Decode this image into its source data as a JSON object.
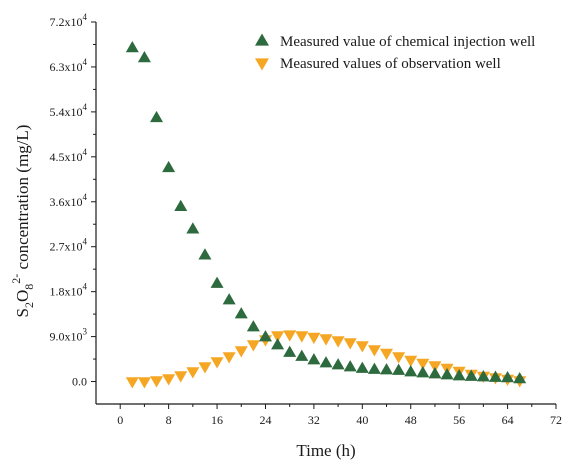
{
  "chart_data": {
    "type": "scatter",
    "xlabel": "Time (h)",
    "ylabel": {
      "parts": [
        {
          "text": "S",
          "shift": "none"
        },
        {
          "text": "2",
          "shift": "sub"
        },
        {
          "text": "O",
          "shift": "none"
        },
        {
          "text": "8",
          "shift": "sub"
        },
        {
          "text": "2-",
          "shift": "super"
        },
        {
          "text": " concentration (mg/L)",
          "shift": "none"
        }
      ]
    },
    "xlim": [
      -4,
      72
    ],
    "ylim": [
      -4500,
      72000
    ],
    "x_ticks": [
      0,
      8,
      16,
      24,
      32,
      40,
      48,
      56,
      64,
      72
    ],
    "y_ticks": [
      {
        "value": 0,
        "mantissa": "0.0",
        "exponent": ""
      },
      {
        "value": 9000,
        "mantissa": "9.0x10",
        "exponent": "3"
      },
      {
        "value": 18000,
        "mantissa": "1.8x10",
        "exponent": "4"
      },
      {
        "value": 27000,
        "mantissa": "2.7x10",
        "exponent": "4"
      },
      {
        "value": 36000,
        "mantissa": "3.6x10",
        "exponent": "4"
      },
      {
        "value": 45000,
        "mantissa": "4.5x10",
        "exponent": "4"
      },
      {
        "value": 54000,
        "mantissa": "5.4x10",
        "exponent": "4"
      },
      {
        "value": 63000,
        "mantissa": "6.3x10",
        "exponent": "4"
      },
      {
        "value": 72000,
        "mantissa": "7.2x10",
        "exponent": "4"
      }
    ],
    "legend_position": "top-right",
    "series": [
      {
        "name": "Measured value of chemical injection well",
        "marker": "triangle-up",
        "color": "#2d6a3e",
        "points": [
          [
            2,
            66800
          ],
          [
            4,
            64800
          ],
          [
            6,
            52800
          ],
          [
            8,
            42800
          ],
          [
            10,
            35000
          ],
          [
            12,
            30500
          ],
          [
            14,
            25300
          ],
          [
            16,
            19600
          ],
          [
            18,
            16300
          ],
          [
            20,
            13500
          ],
          [
            22,
            10900
          ],
          [
            24,
            8900
          ],
          [
            26,
            7300
          ],
          [
            28,
            5800
          ],
          [
            30,
            5000
          ],
          [
            32,
            4300
          ],
          [
            34,
            3700
          ],
          [
            36,
            3300
          ],
          [
            38,
            2900
          ],
          [
            40,
            2600
          ],
          [
            42,
            2400
          ],
          [
            44,
            2300
          ],
          [
            46,
            2200
          ],
          [
            48,
            1900
          ],
          [
            50,
            1700
          ],
          [
            52,
            1500
          ],
          [
            54,
            1300
          ],
          [
            56,
            1100
          ],
          [
            58,
            1000
          ],
          [
            60,
            900
          ],
          [
            62,
            800
          ],
          [
            64,
            700
          ],
          [
            66,
            500
          ]
        ]
      },
      {
        "name": "Measured values of observation well",
        "marker": "triangle-down",
        "color": "#f5a623",
        "points": [
          [
            2,
            0
          ],
          [
            4,
            0
          ],
          [
            6,
            200
          ],
          [
            8,
            600
          ],
          [
            10,
            1200
          ],
          [
            12,
            2000
          ],
          [
            14,
            3000
          ],
          [
            16,
            4000
          ],
          [
            18,
            5000
          ],
          [
            20,
            6200
          ],
          [
            22,
            7400
          ],
          [
            24,
            8400
          ],
          [
            26,
            9200
          ],
          [
            28,
            9400
          ],
          [
            30,
            9200
          ],
          [
            32,
            8900
          ],
          [
            34,
            8600
          ],
          [
            36,
            8200
          ],
          [
            38,
            7800
          ],
          [
            40,
            7200
          ],
          [
            42,
            6400
          ],
          [
            44,
            5700
          ],
          [
            46,
            5000
          ],
          [
            48,
            4300
          ],
          [
            50,
            3700
          ],
          [
            52,
            3200
          ],
          [
            54,
            2700
          ],
          [
            56,
            2100
          ],
          [
            58,
            1500
          ],
          [
            60,
            1100
          ],
          [
            62,
            800
          ],
          [
            64,
            500
          ],
          [
            66,
            200
          ]
        ]
      }
    ]
  }
}
